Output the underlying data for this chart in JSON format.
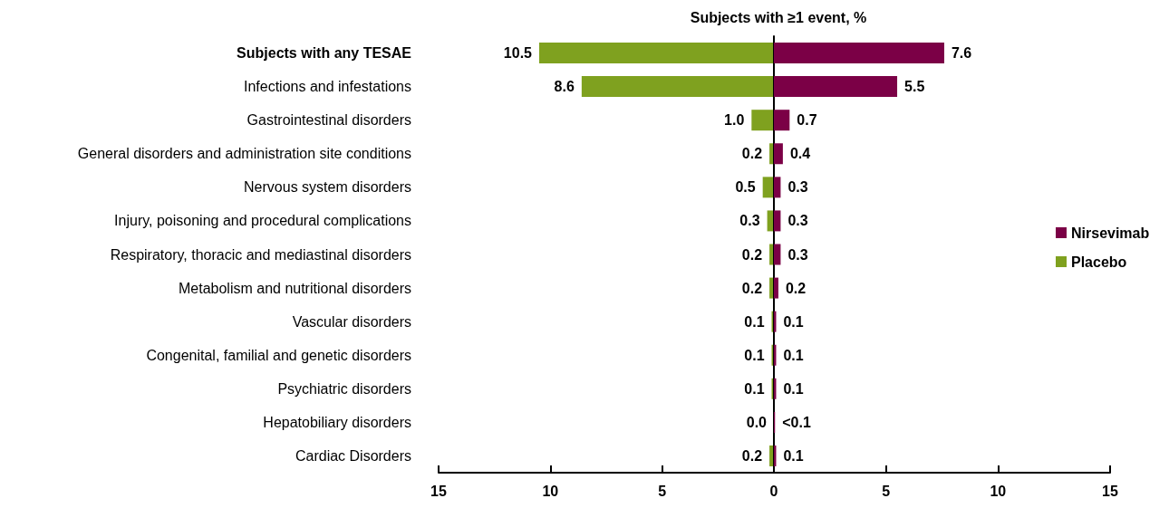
{
  "chart_data": [
    {
      "type": "bar",
      "orientation": "horizontal",
      "title": "Subjects with ≥1 event, %",
      "categories": [
        "Subjects with any TESAE",
        "Infections and infestations",
        "Gastrointestinal disorders",
        "General disorders and administration site conditions",
        "Nervous system disorders",
        "Injury, poisoning and procedural complications",
        "Respiratory, thoracic and mediastinal disorders",
        "Metabolism and nutritional disorders",
        "Vascular disorders",
        "Congenital, familial and genetic disorders",
        "Psychiatric disorders",
        "Hepatobiliary disorders",
        "Cardiac Disorders"
      ],
      "series": [
        {
          "name": "Placebo",
          "color": "#7fa11f",
          "values": [
            10.5,
            8.6,
            1.0,
            0.2,
            0.5,
            0.3,
            0.2,
            0.2,
            0.1,
            0.1,
            0.1,
            0.0,
            0.2
          ],
          "value_labels": [
            "10.5",
            "8.6",
            "1.0",
            "0.2",
            "0.5",
            "0.3",
            "0.2",
            "0.2",
            "0.1",
            "0.1",
            "0.1",
            "0.0",
            "0.2"
          ]
        }
      ],
      "xlim": [
        15,
        0
      ],
      "xticks": [
        15,
        10,
        5,
        {
          "value": 0,
          "label": null
        }
      ],
      "grid": false,
      "legend": "right"
    },
    {
      "type": "bar",
      "orientation": "horizontal",
      "categories": [
        null,
        null,
        null,
        null,
        null,
        null,
        null,
        null,
        null,
        null,
        null,
        null,
        null
      ],
      "series": [
        {
          "name": "Nirsevimab",
          "color": "#7b0046",
          "values": [
            7.6,
            5.5,
            0.7,
            0.4,
            0.3,
            0.3,
            0.3,
            0.2,
            0.1,
            0.1,
            0.1,
            0.05,
            0.1
          ],
          "value_labels": [
            "7.6",
            "5.5",
            "0.7",
            "0.4",
            "0.3",
            "0.3",
            "0.3",
            "0.2",
            "0.1",
            "0.1",
            "0.1",
            "<0.1",
            "0.1"
          ]
        }
      ],
      "xlim": [
        0,
        15
      ],
      "xticks": [
        0,
        5,
        10,
        15
      ],
      "tick_labels": "x",
      "grid": false,
      "legend": "right"
    }
  ]
}
